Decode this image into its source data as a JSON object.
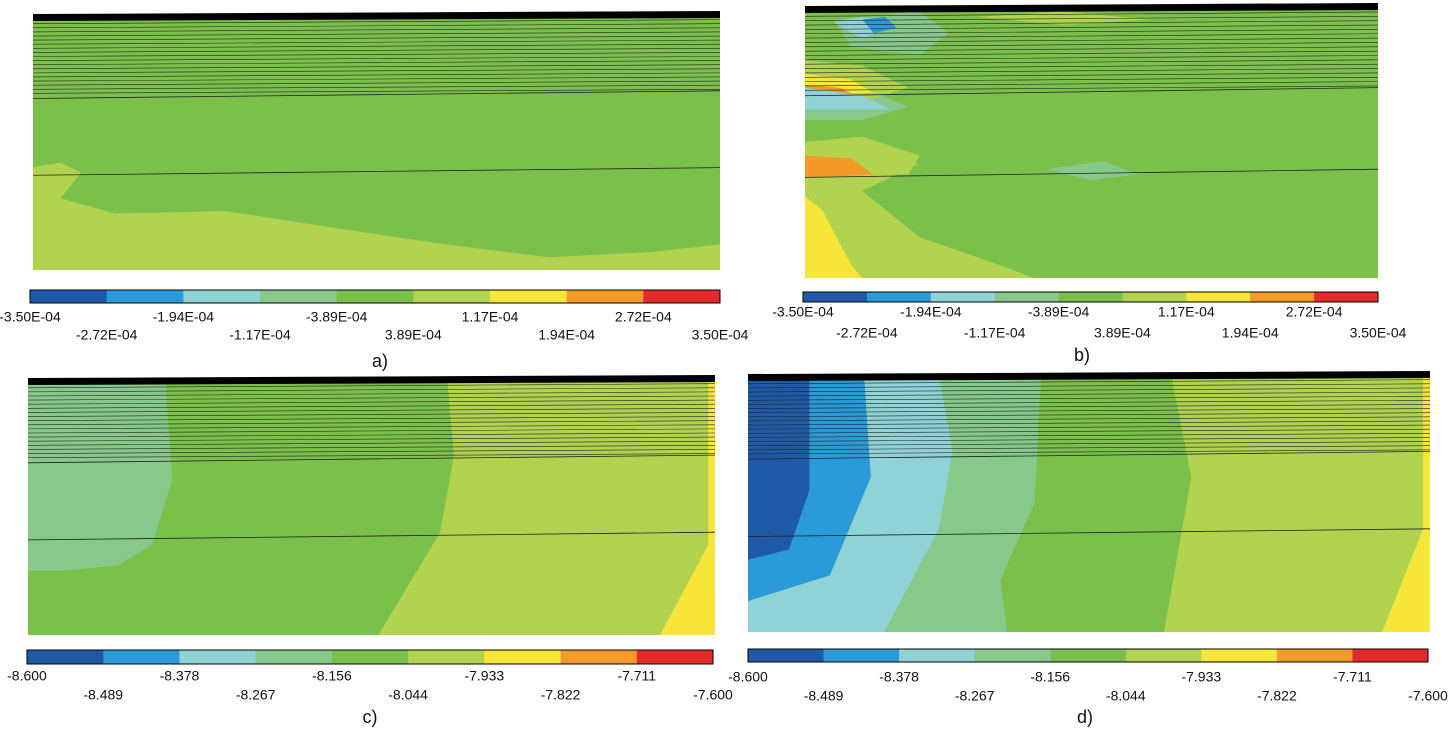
{
  "panels": [
    {
      "label": "a)",
      "colorbar": {
        "colors": [
          "#1f5aa8",
          "#2a9ad8",
          "#8fd3d6",
          "#86c98a",
          "#7bc04a",
          "#b2d350",
          "#f7e53a",
          "#f39a2a",
          "#e32b2b"
        ],
        "labels": [
          "-3.50E-04",
          "-2.72E-04",
          "-1.94E-04",
          "-1.17E-04",
          "-3.89E-04",
          "3.89E-04",
          "1.17E-04",
          "1.94E-04",
          "2.72E-04",
          "3.50E-04"
        ]
      }
    },
    {
      "label": "b)",
      "colorbar": {
        "colors": [
          "#1f5aa8",
          "#2a9ad8",
          "#8fd3d6",
          "#86c98a",
          "#7bc04a",
          "#b2d350",
          "#f7e53a",
          "#f39a2a",
          "#e32b2b"
        ],
        "labels": [
          "-3.50E-04",
          "-2.72E-04",
          "-1.94E-04",
          "-1.17E-04",
          "-3.89E-04",
          "3.89E-04",
          "1.17E-04",
          "1.94E-04",
          "2.72E-04",
          "3.50E-04"
        ]
      }
    },
    {
      "label": "c)",
      "colorbar": {
        "colors": [
          "#1f5aa8",
          "#2a9ad8",
          "#8fd3d6",
          "#86c98a",
          "#7bc04a",
          "#b2d350",
          "#f7e53a",
          "#f39a2a",
          "#e32b2b"
        ],
        "labels": [
          "-8.600",
          "-8.489",
          "-8.378",
          "-8.267",
          "-8.156",
          "-8.044",
          "-7.933",
          "-7.822",
          "-7.711",
          "-7.600"
        ]
      }
    },
    {
      "label": "d)",
      "colorbar": {
        "colors": [
          "#1f5aa8",
          "#2a9ad8",
          "#8fd3d6",
          "#86c98a",
          "#7bc04a",
          "#b2d350",
          "#f7e53a",
          "#f39a2a",
          "#e32b2b"
        ],
        "labels": [
          "-8.600",
          "-8.489",
          "-8.378",
          "-8.267",
          "-8.156",
          "-8.044",
          "-7.933",
          "-7.822",
          "-7.711",
          "-7.600"
        ]
      }
    }
  ]
}
